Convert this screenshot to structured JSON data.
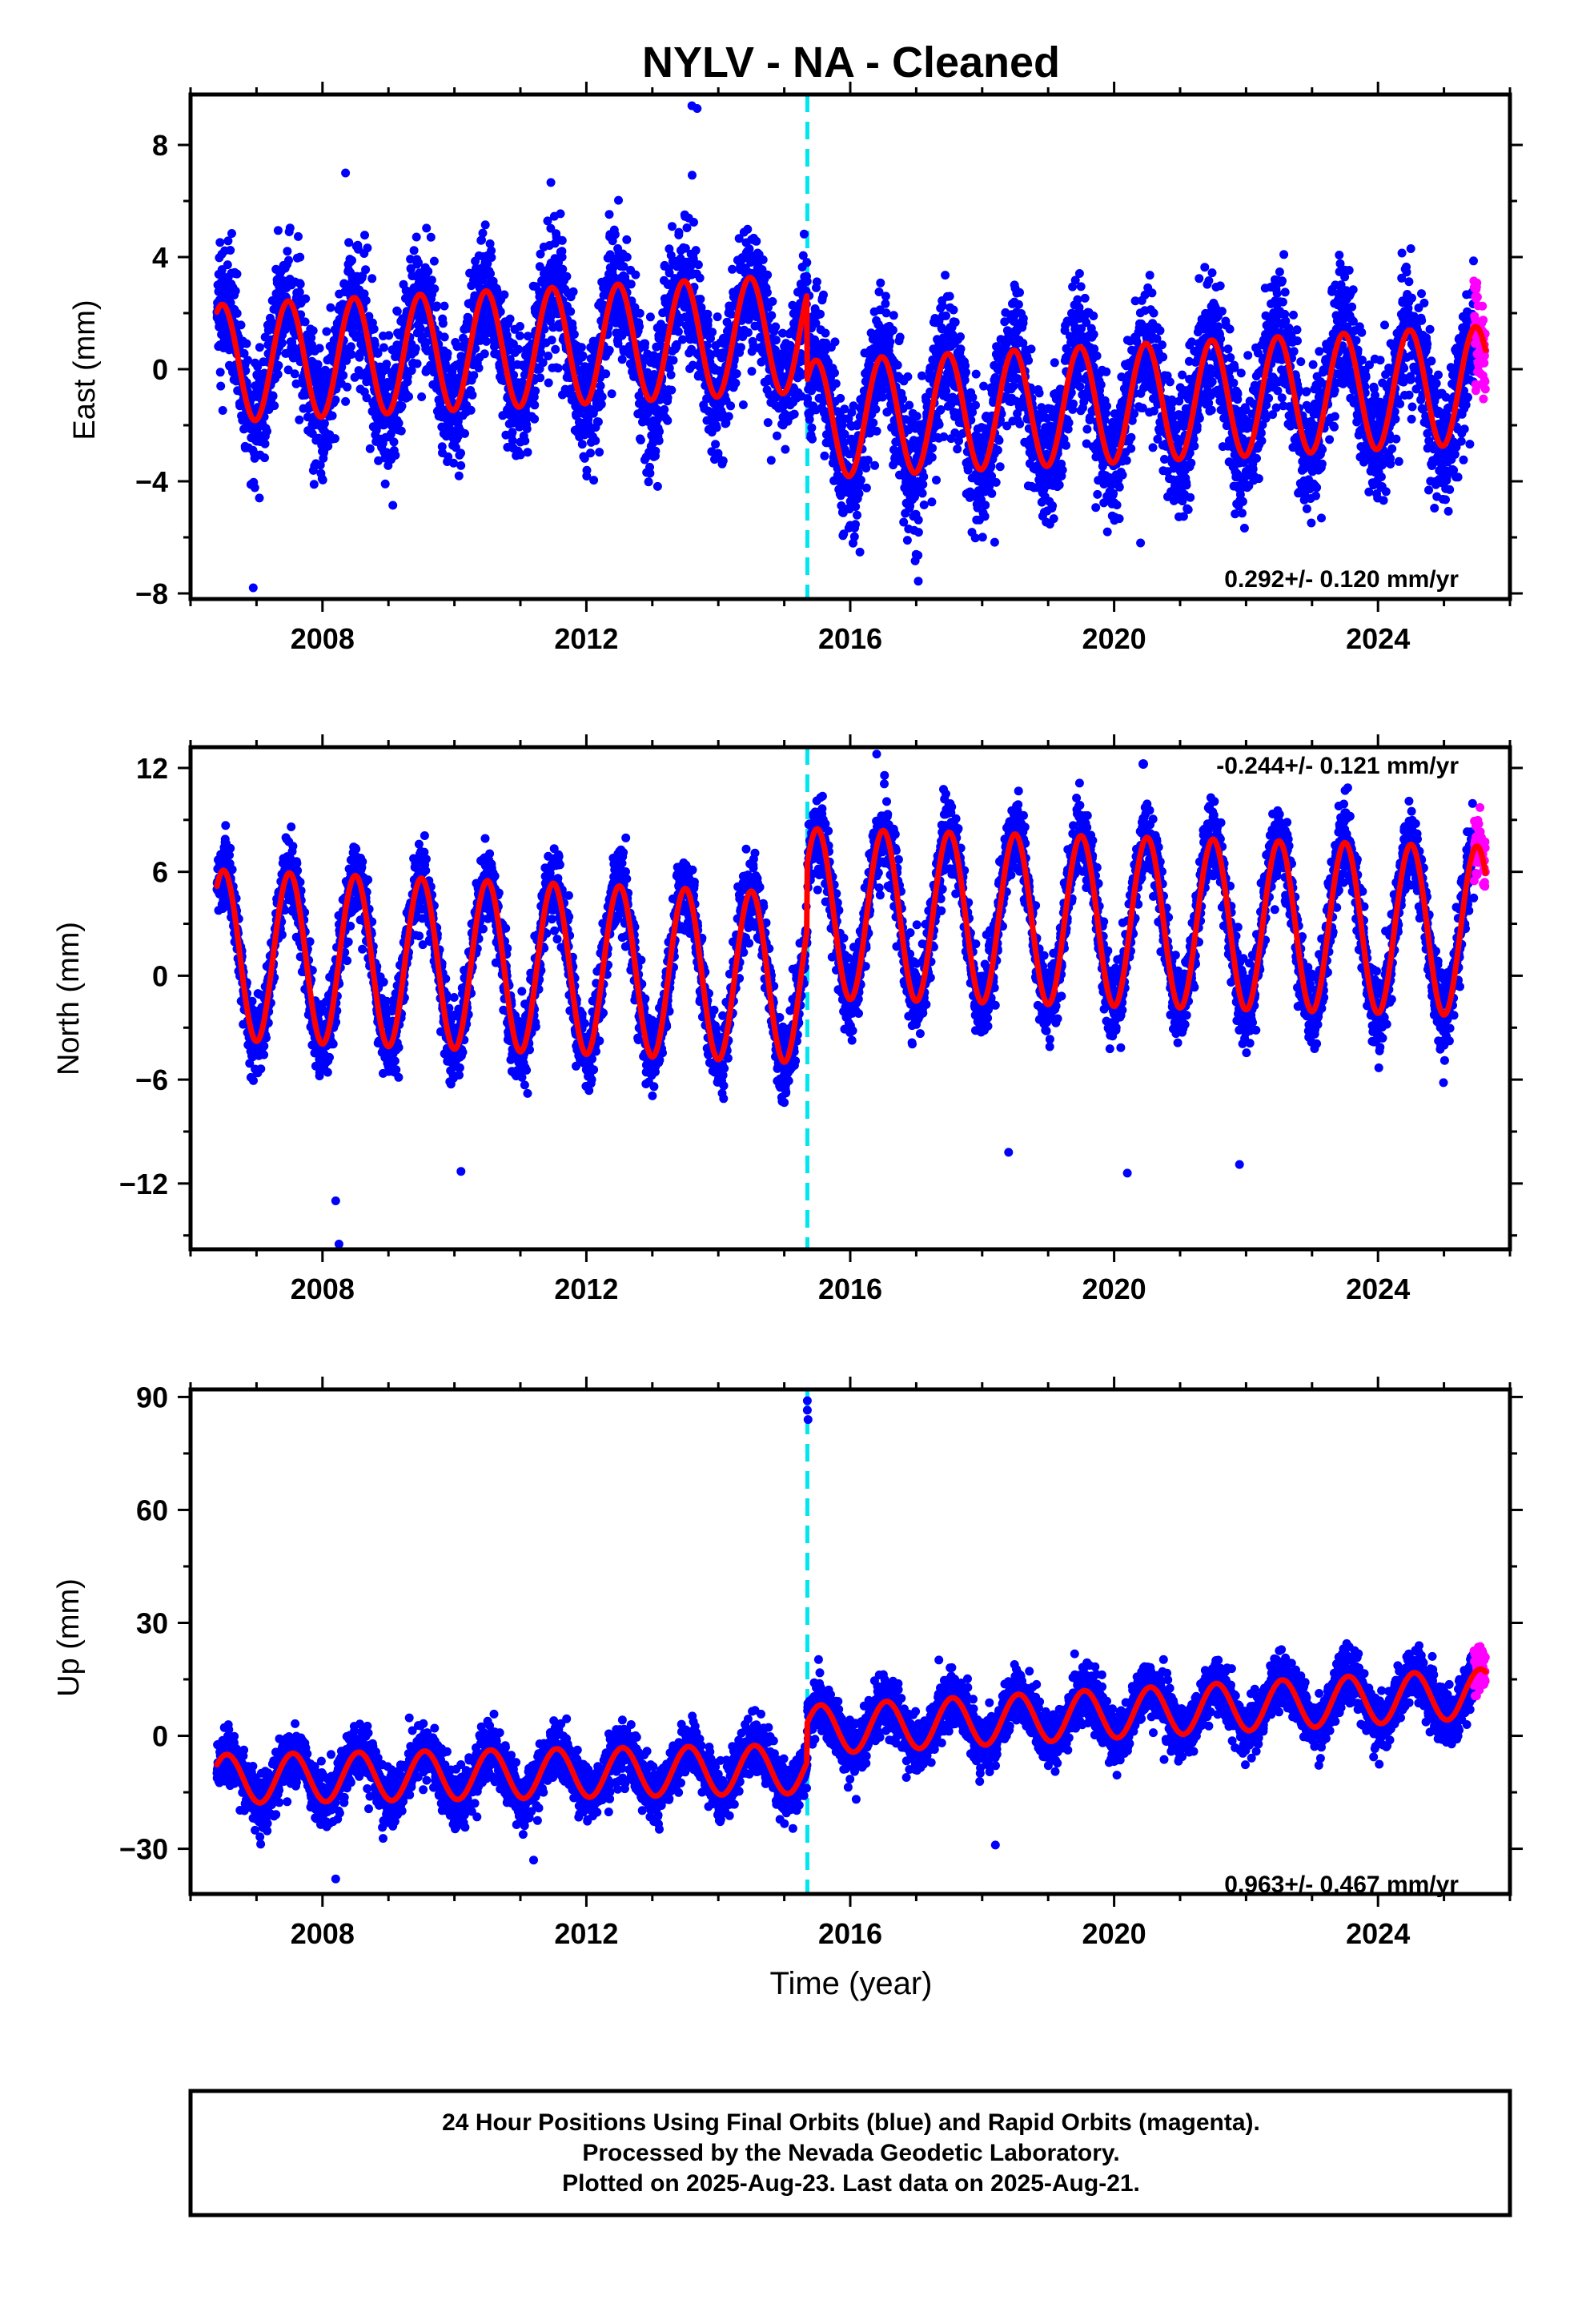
{
  "title": "NYLV  - NA - Cleaned",
  "footer": {
    "line1": "24 Hour Positions Using Final Orbits (blue) and Rapid Orbits (magenta).",
    "line2": "Processed by the Nevada Geodetic Laboratory.",
    "line3": "Plotted on 2025-Aug-23. Last data on 2025-Aug-21."
  },
  "colors": {
    "final": "#0000ff",
    "rapid": "#ff00ff",
    "model": "#ff0000",
    "offset": "#00e5ee"
  },
  "chart_data": [
    {
      "type": "scatter",
      "component": "east",
      "ylabel": "East (mm)",
      "xlabel": "",
      "rate": "0.292+/- 0.120 mm/yr",
      "xlim": [
        2006.0,
        2026.0
      ],
      "ylim": [
        -8.2,
        9.8
      ],
      "yticks": [
        -8,
        -4,
        0,
        4,
        8
      ],
      "ytick_labels": [
        "−8",
        "−4",
        "0",
        "4",
        "8"
      ],
      "xticks": [
        2008,
        2012,
        2016,
        2020,
        2024
      ],
      "xtick_labels": [
        "2008",
        "2012",
        "2016",
        "2020",
        "2024"
      ],
      "offset_epoch": 2015.35,
      "data_start": 2006.4,
      "data_end": 2025.63,
      "rapid_start": 2025.45,
      "seasonal_amplitude": 2.1,
      "seasonal_peak": 0.48,
      "noise_sd": 1.15,
      "model_before": {
        "y_at_start": 0.2,
        "slope": 0.12
      },
      "model_after": {
        "y_at_offset": -1.8,
        "slope": 0.12
      },
      "outliers": [
        [
          2006.95,
          -7.8
        ],
        [
          2013.6,
          9.4
        ],
        [
          2013.68,
          9.3
        ],
        [
          2008.35,
          7.0
        ],
        [
          2020.4,
          -6.2
        ]
      ]
    },
    {
      "type": "scatter",
      "component": "north",
      "ylabel": "North (mm)",
      "xlabel": "",
      "rate": "-0.244+/- 0.121 mm/yr",
      "xlim": [
        2006.0,
        2026.0
      ],
      "ylim": [
        -15.8,
        13.2
      ],
      "yticks": [
        -12,
        -6,
        0,
        6,
        12
      ],
      "ytick_labels": [
        "−12",
        "−6",
        "0",
        "6",
        "12"
      ],
      "xticks": [
        2008,
        2012,
        2016,
        2020,
        2024
      ],
      "xtick_labels": [
        "2008",
        "2012",
        "2016",
        "2020",
        "2024"
      ],
      "offset_epoch": 2015.35,
      "data_start": 2006.4,
      "data_end": 2025.63,
      "rapid_start": 2025.45,
      "seasonal_amplitude": 4.9,
      "seasonal_peak": 0.5,
      "noise_sd": 1.1,
      "model_before": {
        "y_at_start": 1.2,
        "slope": -0.15
      },
      "model_after": {
        "y_at_offset": 3.6,
        "slope": -0.1
      },
      "outliers": [
        [
          2008.2,
          -13.0
        ],
        [
          2008.25,
          -15.5
        ],
        [
          2010.1,
          -11.3
        ],
        [
          2020.2,
          -11.4
        ],
        [
          2018.4,
          -10.2
        ],
        [
          2021.9,
          -10.9
        ],
        [
          2016.4,
          12.8
        ]
      ]
    },
    {
      "type": "scatter",
      "component": "up",
      "ylabel": "Up (mm)",
      "xlabel": "Time (year)",
      "rate": "0.963+/- 0.467 mm/yr",
      "xlim": [
        2006.0,
        2026.0
      ],
      "ylim": [
        -42.0,
        92.0
      ],
      "yticks": [
        -30,
        0,
        30,
        60,
        90
      ],
      "ytick_labels": [
        "−30",
        "0",
        "30",
        "60",
        "90"
      ],
      "xticks": [
        2008,
        2012,
        2016,
        2020,
        2024
      ],
      "xtick_labels": [
        "2008",
        "2012",
        "2016",
        "2020",
        "2024"
      ],
      "offset_epoch": 2015.35,
      "data_start": 2006.4,
      "data_end": 2025.63,
      "rapid_start": 2025.45,
      "seasonal_amplitude": 6.5,
      "seasonal_peak": 0.55,
      "noise_sd": 3.6,
      "model_before": {
        "y_at_start": -11.5,
        "slope": 0.3
      },
      "model_after": {
        "y_at_offset": 1.5,
        "slope": 0.95
      },
      "outliers": [
        [
          2015.35,
          89.0
        ],
        [
          2015.35,
          86.5
        ],
        [
          2015.36,
          84.0
        ],
        [
          2008.2,
          -38.0
        ],
        [
          2018.2,
          -29.0
        ],
        [
          2011.2,
          -33.0
        ]
      ]
    }
  ]
}
